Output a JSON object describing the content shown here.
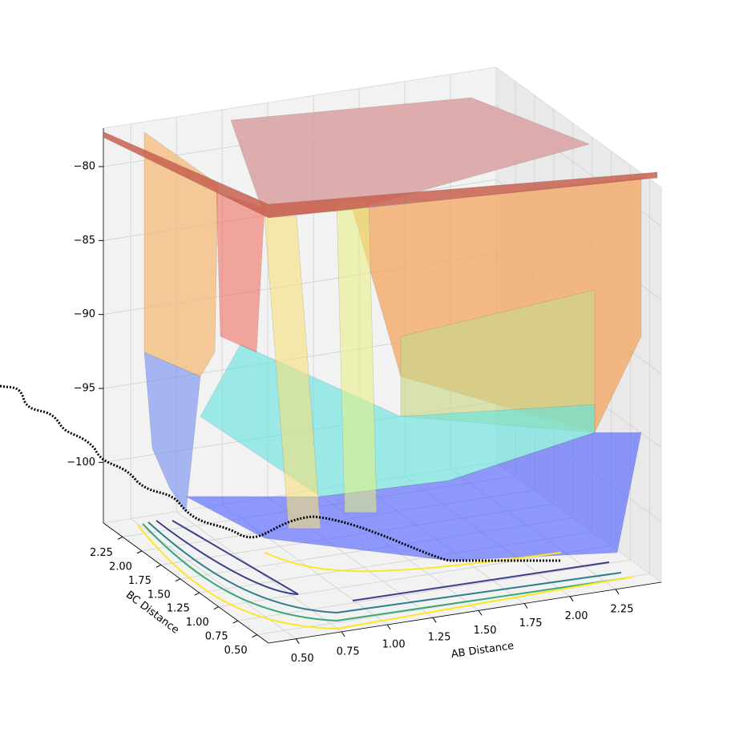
{
  "chart_data": {
    "type": "surface3d",
    "x_label": "AB Distance",
    "y_label": "BC Distance",
    "xlim": [
      0.35,
      2.5
    ],
    "ylim": [
      0.35,
      2.5
    ],
    "zlim": [
      -104.1,
      -77.4
    ],
    "xticks": [
      {
        "value": 0.5,
        "label": "0.50"
      },
      {
        "value": 0.75,
        "label": "0.75"
      },
      {
        "value": 1.0,
        "label": "1.00"
      },
      {
        "value": 1.25,
        "label": "1.25"
      },
      {
        "value": 1.5,
        "label": "1.50"
      },
      {
        "value": 1.75,
        "label": "1.75"
      },
      {
        "value": 2.0,
        "label": "2.00"
      },
      {
        "value": 2.25,
        "label": "2.25"
      }
    ],
    "yticks": [
      {
        "value": 0.5,
        "label": "0.50"
      },
      {
        "value": 0.75,
        "label": "0.75"
      },
      {
        "value": 1.0,
        "label": "1.00"
      },
      {
        "value": 1.25,
        "label": "1.25"
      },
      {
        "value": 1.5,
        "label": "1.50"
      },
      {
        "value": 1.75,
        "label": "1.75"
      },
      {
        "value": 2.0,
        "label": "2.00"
      },
      {
        "value": 2.25,
        "label": "2.25"
      }
    ],
    "zticks": [
      {
        "value": -80,
        "label": "−80"
      },
      {
        "value": -85,
        "label": "−85"
      },
      {
        "value": -90,
        "label": "−90"
      },
      {
        "value": -95,
        "label": "−95"
      },
      {
        "value": -100,
        "label": "−100"
      }
    ],
    "grid": true
  }
}
